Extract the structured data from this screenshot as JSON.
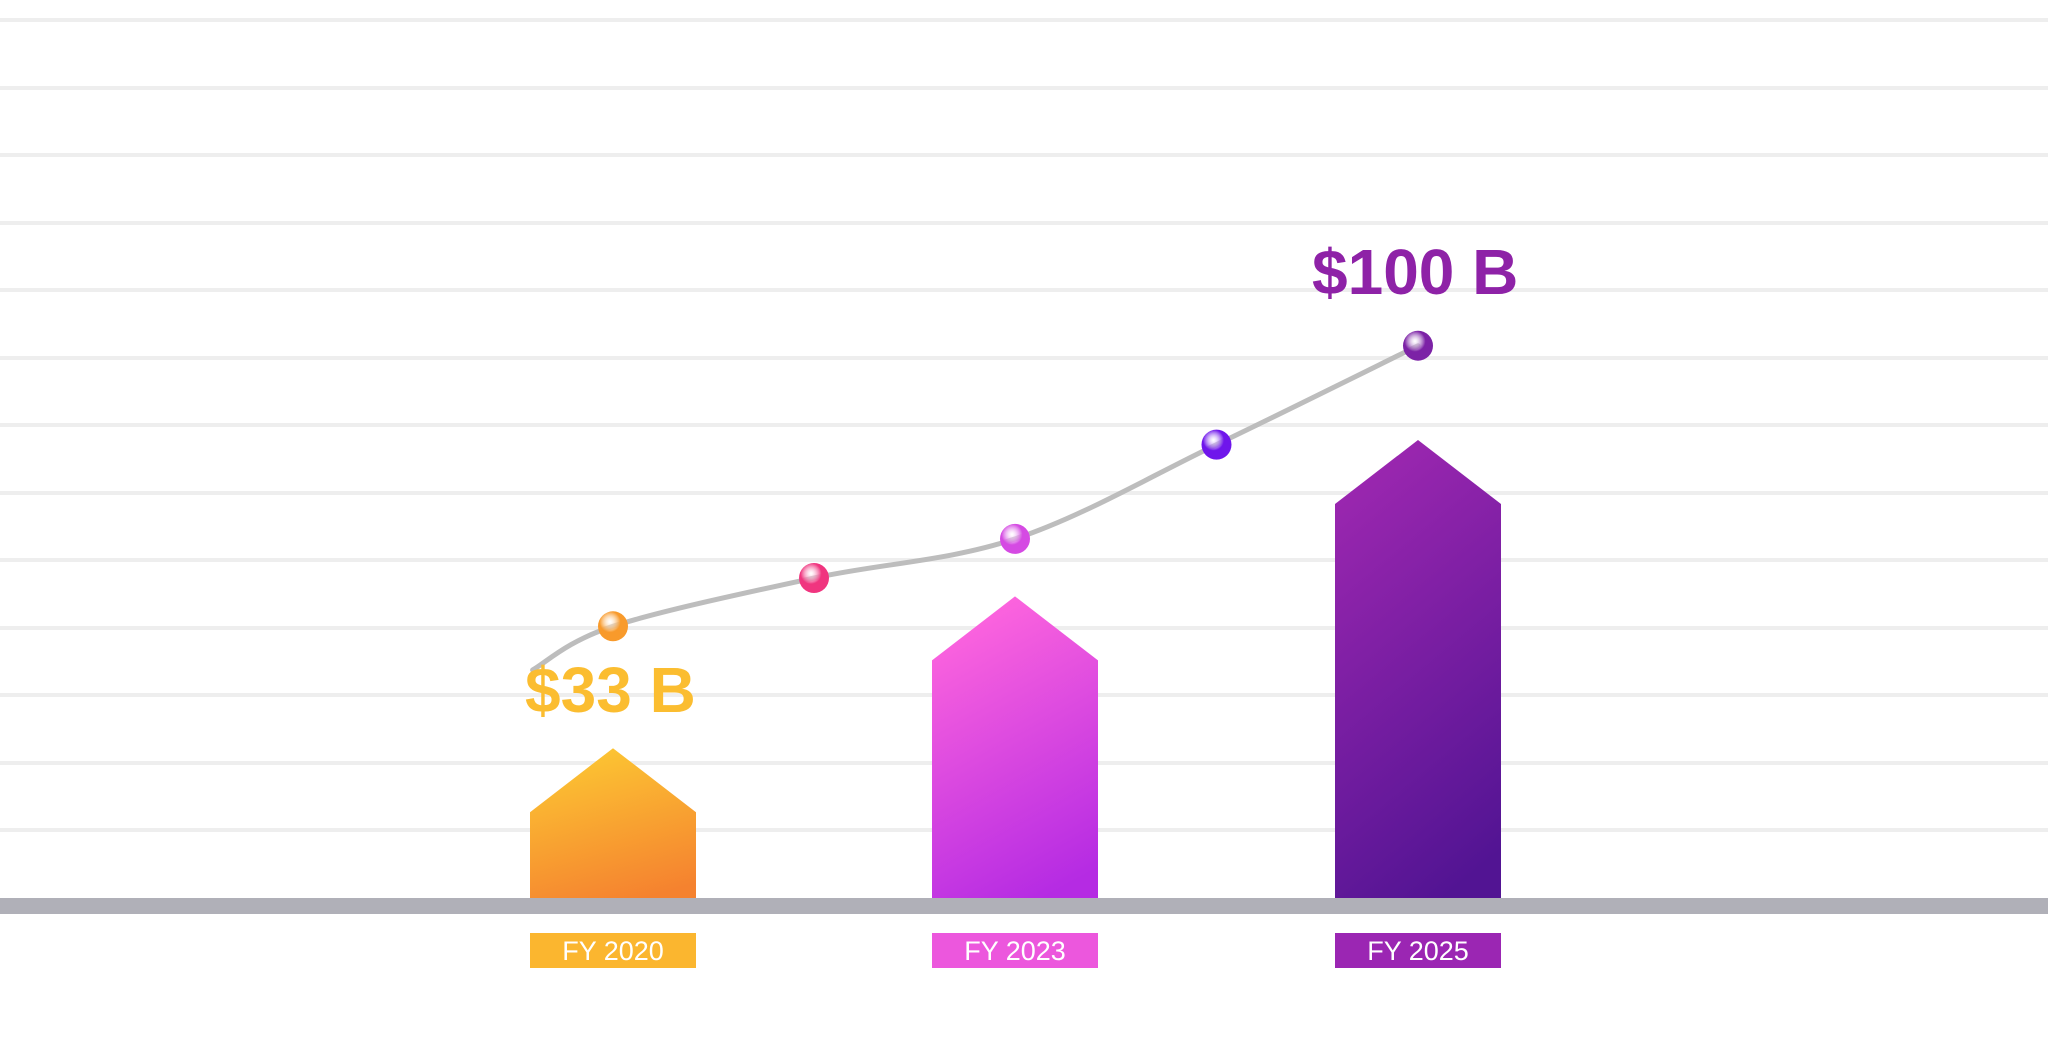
{
  "chart_data": {
    "type": "bar",
    "title": "",
    "xlabel": "",
    "ylabel": "",
    "grid": true,
    "ylim": [
      0,
      125
    ],
    "categories": [
      "FY 2020",
      "FY 2023",
      "FY 2025"
    ],
    "values": [
      33,
      66,
      100
    ],
    "value_labels": [
      "$33 B",
      "",
      "$100 B"
    ],
    "trend_line": {
      "style": "smooth",
      "points": [
        {
          "x": 0,
          "y": 59.5
        },
        {
          "x": 0.5,
          "y": 70
        },
        {
          "x": 1,
          "y": 78.5
        },
        {
          "x": 1.5,
          "y": 99
        },
        {
          "x": 2,
          "y": 120.5
        }
      ],
      "start": {
        "x": -0.2,
        "y": 50
      },
      "marker_colors": [
        "#F89A2B",
        "#F0357F",
        "#D54AE3",
        "#6F16EB",
        "#7C22A6"
      ]
    }
  },
  "colors": {
    "bar_gradients": [
      [
        "#FCC633",
        "#F5822F"
      ],
      [
        "#FF66DD",
        "#B52BE3"
      ],
      [
        "#9C27B0",
        "#521493"
      ]
    ],
    "category_tag": [
      "#FBB62F",
      "#EC57DD",
      "#9B26B3"
    ],
    "value_label": [
      "#FBBD30",
      "#EC57DD",
      "#8E22A7"
    ],
    "grid": "#EEEEEE",
    "baseline": "#B0B0B8",
    "trend": "#BDBDBD"
  }
}
